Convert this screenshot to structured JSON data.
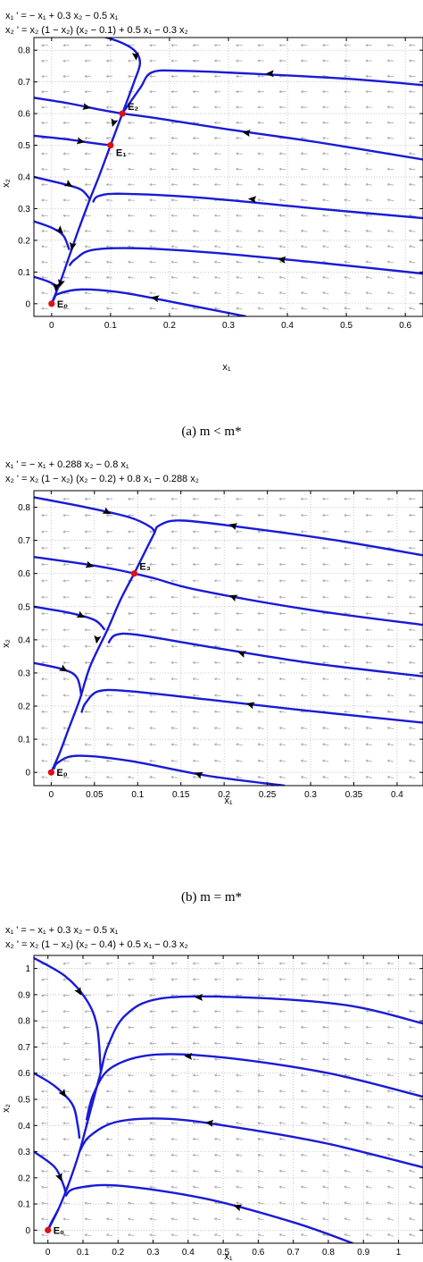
{
  "panels": [
    {
      "id": "a",
      "eq1": "x₁ ' = − x₁ + 0.3 x₂ − 0.5 x₁",
      "eq2": "x₂ ' = x₂ (1 − x₂) (x₂ − 0.1) + 0.5 x₁ − 0.3 x₂",
      "xlabel": "x₁",
      "ylabel": "x₂",
      "caption": "(a)  m < m*",
      "xlim": [
        -0.03,
        0.63
      ],
      "ylim": [
        -0.04,
        0.84
      ],
      "xticks": [
        0,
        0.1,
        0.2,
        0.3,
        0.4,
        0.5,
        0.6
      ],
      "xtick_labels": [
        "0",
        "0.1",
        "0.2",
        "0.3",
        "0.4",
        "0.5",
        "0.6"
      ],
      "yticks": [
        0,
        0.1,
        0.2,
        0.3,
        0.4,
        0.5,
        0.6,
        0.7,
        0.8
      ],
      "ytick_labels": [
        "0",
        "0.1",
        "0.2",
        "0.3",
        "0.4",
        "0.5",
        "0.6",
        "0.7",
        "0.8"
      ],
      "equilibria": [
        {
          "label": "E₀",
          "x": 0,
          "y": 0
        },
        {
          "label": "E₁",
          "x": 0.1,
          "y": 0.5
        },
        {
          "label": "E₂",
          "x": 0.12,
          "y": 0.6
        }
      ],
      "trajectories": [
        [
          [
            0.055,
            0.86
          ],
          [
            0.11,
            0.83
          ],
          [
            0.14,
            0.8
          ],
          [
            0.15,
            0.76
          ],
          [
            0.14,
            0.7
          ],
          [
            0.12,
            0.6
          ]
        ],
        [
          [
            0.63,
            0.69
          ],
          [
            0.5,
            0.71
          ],
          [
            0.35,
            0.725
          ],
          [
            0.22,
            0.735
          ],
          [
            0.17,
            0.73
          ],
          [
            0.15,
            0.68
          ],
          [
            0.12,
            0.6
          ]
        ],
        [
          [
            -0.03,
            0.65
          ],
          [
            0.03,
            0.632
          ],
          [
            0.08,
            0.613
          ],
          [
            0.12,
            0.6
          ]
        ],
        [
          [
            0.63,
            0.455
          ],
          [
            0.45,
            0.51
          ],
          [
            0.3,
            0.55
          ],
          [
            0.18,
            0.585
          ],
          [
            0.12,
            0.6
          ]
        ],
        [
          [
            0.12,
            0.6
          ],
          [
            0.1,
            0.5
          ]
        ],
        [
          [
            -0.03,
            0.53
          ],
          [
            0.03,
            0.518
          ],
          [
            0.07,
            0.507
          ],
          [
            0.1,
            0.5
          ]
        ],
        [
          [
            0.63,
            0.27
          ],
          [
            0.45,
            0.3
          ],
          [
            0.25,
            0.335
          ],
          [
            0.12,
            0.347
          ],
          [
            0.08,
            0.34
          ],
          [
            0.07,
            0.32
          ]
        ],
        [
          [
            -0.03,
            0.4
          ],
          [
            0.02,
            0.378
          ],
          [
            0.05,
            0.36
          ],
          [
            0.065,
            0.33
          ]
        ],
        [
          [
            0.1,
            0.5
          ],
          [
            0.08,
            0.4
          ],
          [
            0.065,
            0.33
          ],
          [
            0.045,
            0.23
          ],
          [
            0.03,
            0.15
          ],
          [
            0.015,
            0.07
          ],
          [
            0,
            0
          ]
        ],
        [
          [
            0.63,
            0.095
          ],
          [
            0.45,
            0.13
          ],
          [
            0.28,
            0.16
          ],
          [
            0.15,
            0.175
          ],
          [
            0.07,
            0.17
          ],
          [
            0.04,
            0.14
          ],
          [
            0.03,
            0.12
          ]
        ],
        [
          [
            -0.03,
            0.26
          ],
          [
            0.0,
            0.24
          ],
          [
            0.02,
            0.215
          ],
          [
            0.03,
            0.17
          ]
        ],
        [
          [
            0.33,
            -0.04
          ],
          [
            0.22,
            0.0
          ],
          [
            0.12,
            0.035
          ],
          [
            0.05,
            0.045
          ],
          [
            0.01,
            0.03
          ],
          [
            0.003,
            0.01
          ]
        ],
        [
          [
            -0.03,
            0.085
          ],
          [
            0.0,
            0.065
          ],
          [
            0.008,
            0.04
          ],
          [
            0.004,
            0.015
          ]
        ]
      ],
      "arrows": [
        {
          "x": 0.143,
          "y": 0.78,
          "dir": [
            0.1,
            -1
          ]
        },
        {
          "x": 0.37,
          "y": 0.726,
          "dir": [
            -1,
            0
          ]
        },
        {
          "x": 0.06,
          "y": 0.62,
          "dir": [
            1,
            -0.2
          ]
        },
        {
          "x": 0.105,
          "y": 0.57,
          "dir": [
            -0.3,
            -1
          ]
        },
        {
          "x": 0.33,
          "y": 0.54,
          "dir": [
            -1,
            0.15
          ]
        },
        {
          "x": 0.05,
          "y": 0.512,
          "dir": [
            1,
            -0.2
          ]
        },
        {
          "x": 0.34,
          "y": 0.33,
          "dir": [
            -1,
            0.1
          ]
        },
        {
          "x": 0.03,
          "y": 0.375,
          "dir": [
            1,
            -0.6
          ]
        },
        {
          "x": 0.035,
          "y": 0.18,
          "dir": [
            -0.2,
            -1
          ]
        },
        {
          "x": 0.39,
          "y": 0.14,
          "dir": [
            -1,
            0.15
          ]
        },
        {
          "x": 0.015,
          "y": 0.23,
          "dir": [
            1,
            -1
          ]
        },
        {
          "x": 0.015,
          "y": 0.063,
          "dir": [
            -0.3,
            -1
          ]
        },
        {
          "x": 0.175,
          "y": 0.018,
          "dir": [
            -1,
            0.2
          ]
        },
        {
          "x": 0.008,
          "y": 0.052,
          "dir": [
            -0.1,
            -1
          ]
        }
      ]
    },
    {
      "id": "b",
      "eq1": "x₁ ' = − x₁ + 0.288 x₂ − 0.8 x₁",
      "eq2": "x₂ ' = x₂ (1 − x₂) (x₂ − 0.2) + 0.8 x₁ − 0.288 x₂",
      "xlabel": "x₁",
      "ylabel": "x₂",
      "caption": "(b)  m = m*",
      "xlim": [
        -0.02,
        0.43
      ],
      "ylim": [
        -0.04,
        0.85
      ],
      "xticks": [
        0,
        0.05,
        0.1,
        0.15,
        0.2,
        0.25,
        0.3,
        0.35,
        0.4
      ],
      "xtick_labels": [
        "0",
        "0.05",
        "0.1",
        "0.15",
        "0.2",
        "0.25",
        "0.3",
        "0.35",
        "0.4"
      ],
      "yticks": [
        0,
        0.1,
        0.2,
        0.3,
        0.4,
        0.5,
        0.6,
        0.7,
        0.8
      ],
      "ytick_labels": [
        "0",
        "0.1",
        "0.2",
        "0.3",
        "0.4",
        "0.5",
        "0.6",
        "0.7",
        "0.8"
      ],
      "equilibria": [
        {
          "label": "E₀",
          "x": 0,
          "y": 0
        },
        {
          "label": "E₃",
          "x": 0.096,
          "y": 0.6
        }
      ],
      "trajectories": [
        [
          [
            -0.02,
            0.83
          ],
          [
            0.04,
            0.8
          ],
          [
            0.09,
            0.77
          ],
          [
            0.115,
            0.74
          ],
          [
            0.12,
            0.72
          ]
        ],
        [
          [
            0.43,
            0.655
          ],
          [
            0.33,
            0.7
          ],
          [
            0.22,
            0.74
          ],
          [
            0.15,
            0.76
          ],
          [
            0.125,
            0.745
          ],
          [
            0.118,
            0.715
          ],
          [
            0.096,
            0.6
          ]
        ],
        [
          [
            -0.02,
            0.65
          ],
          [
            0.04,
            0.628
          ],
          [
            0.075,
            0.612
          ],
          [
            0.096,
            0.6
          ]
        ],
        [
          [
            0.43,
            0.445
          ],
          [
            0.3,
            0.49
          ],
          [
            0.17,
            0.55
          ],
          [
            0.12,
            0.585
          ],
          [
            0.096,
            0.6
          ]
        ],
        [
          [
            0.096,
            0.6
          ],
          [
            0.08,
            0.52
          ],
          [
            0.065,
            0.43
          ],
          [
            0.045,
            0.32
          ],
          [
            0.033,
            0.22
          ],
          [
            0.02,
            0.13
          ],
          [
            0.01,
            0.06
          ],
          [
            0,
            0
          ]
        ],
        [
          [
            -0.02,
            0.5
          ],
          [
            0.02,
            0.482
          ],
          [
            0.05,
            0.46
          ],
          [
            0.062,
            0.43
          ]
        ],
        [
          [
            0.43,
            0.29
          ],
          [
            0.3,
            0.33
          ],
          [
            0.18,
            0.38
          ],
          [
            0.1,
            0.415
          ],
          [
            0.075,
            0.415
          ],
          [
            0.066,
            0.39
          ]
        ],
        [
          [
            -0.02,
            0.33
          ],
          [
            0.015,
            0.31
          ],
          [
            0.03,
            0.285
          ],
          [
            0.035,
            0.23
          ]
        ],
        [
          [
            0.43,
            0.15
          ],
          [
            0.3,
            0.185
          ],
          [
            0.18,
            0.22
          ],
          [
            0.09,
            0.245
          ],
          [
            0.055,
            0.245
          ],
          [
            0.04,
            0.21
          ],
          [
            0.035,
            0.18
          ]
        ],
        [
          [
            0.27,
            -0.04
          ],
          [
            0.18,
            -0.01
          ],
          [
            0.09,
            0.035
          ],
          [
            0.03,
            0.05
          ],
          [
            0.008,
            0.03
          ],
          [
            0.003,
            0.01
          ]
        ]
      ],
      "arrows": [
        {
          "x": 0.065,
          "y": 0.785,
          "dir": [
            1,
            -0.5
          ]
        },
        {
          "x": 0.21,
          "y": 0.745,
          "dir": [
            -1,
            0.3
          ]
        },
        {
          "x": 0.045,
          "y": 0.624,
          "dir": [
            1,
            -0.3
          ]
        },
        {
          "x": 0.21,
          "y": 0.53,
          "dir": [
            -1,
            0.4
          ]
        },
        {
          "x": 0.035,
          "y": 0.472,
          "dir": [
            1,
            -0.5
          ]
        },
        {
          "x": 0.22,
          "y": 0.36,
          "dir": [
            -1,
            0.35
          ]
        },
        {
          "x": 0.015,
          "y": 0.31,
          "dir": [
            1,
            -0.6
          ]
        },
        {
          "x": 0.053,
          "y": 0.4,
          "dir": [
            -0.15,
            -1
          ]
        },
        {
          "x": 0.23,
          "y": 0.205,
          "dir": [
            -1,
            0.3
          ]
        },
        {
          "x": 0.17,
          "y": -0.005,
          "dir": [
            -1,
            0.4
          ]
        }
      ]
    },
    {
      "id": "c",
      "eq1": "x₁ ' = − x₁ + 0.3 x₂ − 0.5 x₁",
      "eq2": "x₂ ' = x₂ (1 − x₂) (x₂ − 0.4) + 0.5 x₁ − 0.3 x₂",
      "xlabel": "x₁",
      "ylabel": "x₂",
      "caption": "",
      "xlim": [
        -0.04,
        1.07
      ],
      "ylim": [
        -0.05,
        1.05
      ],
      "xticks": [
        0,
        0.1,
        0.2,
        0.3,
        0.4,
        0.5,
        0.6,
        0.7,
        0.8,
        0.9,
        1
      ],
      "xtick_labels": [
        "0",
        "0.1",
        "0.2",
        "0.3",
        "0.4",
        "0.5",
        "0.6",
        "0.7",
        "0.8",
        "0.9",
        "1"
      ],
      "yticks": [
        0,
        0.1,
        0.2,
        0.3,
        0.4,
        0.5,
        0.6,
        0.7,
        0.8,
        0.9,
        1
      ],
      "ytick_labels": [
        "0",
        "0.1",
        "0.2",
        "0.3",
        "0.4",
        "0.5",
        "0.6",
        "0.7",
        "0.8",
        "0.9",
        "1"
      ],
      "equilibria": [
        {
          "label": "E₀",
          "x": 0,
          "y": 0
        }
      ],
      "trajectories": [
        [
          [
            -0.04,
            1.04
          ],
          [
            0.05,
            0.97
          ],
          [
            0.11,
            0.88
          ],
          [
            0.14,
            0.78
          ],
          [
            0.15,
            0.62
          ],
          [
            0.15,
            0.6
          ]
        ],
        [
          [
            1.07,
            0.79
          ],
          [
            0.85,
            0.86
          ],
          [
            0.55,
            0.89
          ],
          [
            0.32,
            0.885
          ],
          [
            0.22,
            0.82
          ],
          [
            0.17,
            0.7
          ],
          [
            0.15,
            0.6
          ],
          [
            0.12,
            0.45
          ],
          [
            0.09,
            0.3
          ],
          [
            0.06,
            0.18
          ],
          [
            0.03,
            0.08
          ],
          [
            0,
            0
          ]
        ],
        [
          [
            -0.04,
            0.6
          ],
          [
            0.02,
            0.55
          ],
          [
            0.07,
            0.48
          ],
          [
            0.085,
            0.4
          ],
          [
            0.09,
            0.35
          ]
        ],
        [
          [
            1.07,
            0.51
          ],
          [
            0.8,
            0.6
          ],
          [
            0.5,
            0.66
          ],
          [
            0.3,
            0.67
          ],
          [
            0.18,
            0.62
          ],
          [
            0.13,
            0.52
          ],
          [
            0.11,
            0.42
          ]
        ],
        [
          [
            1.07,
            0.24
          ],
          [
            0.8,
            0.33
          ],
          [
            0.55,
            0.39
          ],
          [
            0.35,
            0.425
          ],
          [
            0.2,
            0.415
          ],
          [
            0.12,
            0.36
          ],
          [
            0.09,
            0.3
          ]
        ],
        [
          [
            -0.04,
            0.3
          ],
          [
            0.02,
            0.24
          ],
          [
            0.045,
            0.17
          ],
          [
            0.05,
            0.14
          ]
        ],
        [
          [
            0.87,
            -0.05
          ],
          [
            0.7,
            0.03
          ],
          [
            0.45,
            0.12
          ],
          [
            0.2,
            0.17
          ],
          [
            0.08,
            0.16
          ],
          [
            0.05,
            0.13
          ]
        ],
        [
          [
            0.03,
            0.08
          ],
          [
            0.01,
            0.03
          ],
          [
            0,
            0
          ]
        ]
      ],
      "arrows": [
        {
          "x": 0.09,
          "y": 0.91,
          "dir": [
            0.6,
            -1
          ]
        },
        {
          "x": 0.43,
          "y": 0.89,
          "dir": [
            -1,
            0
          ]
        },
        {
          "x": 0.045,
          "y": 0.52,
          "dir": [
            0.7,
            -1
          ]
        },
        {
          "x": 0.4,
          "y": 0.665,
          "dir": [
            -1,
            0.05
          ]
        },
        {
          "x": 0.46,
          "y": 0.41,
          "dir": [
            -1,
            0.12
          ]
        },
        {
          "x": 0.035,
          "y": 0.2,
          "dir": [
            0.4,
            -1
          ]
        },
        {
          "x": 0.54,
          "y": 0.09,
          "dir": [
            -1,
            0.35
          ]
        }
      ]
    }
  ]
}
